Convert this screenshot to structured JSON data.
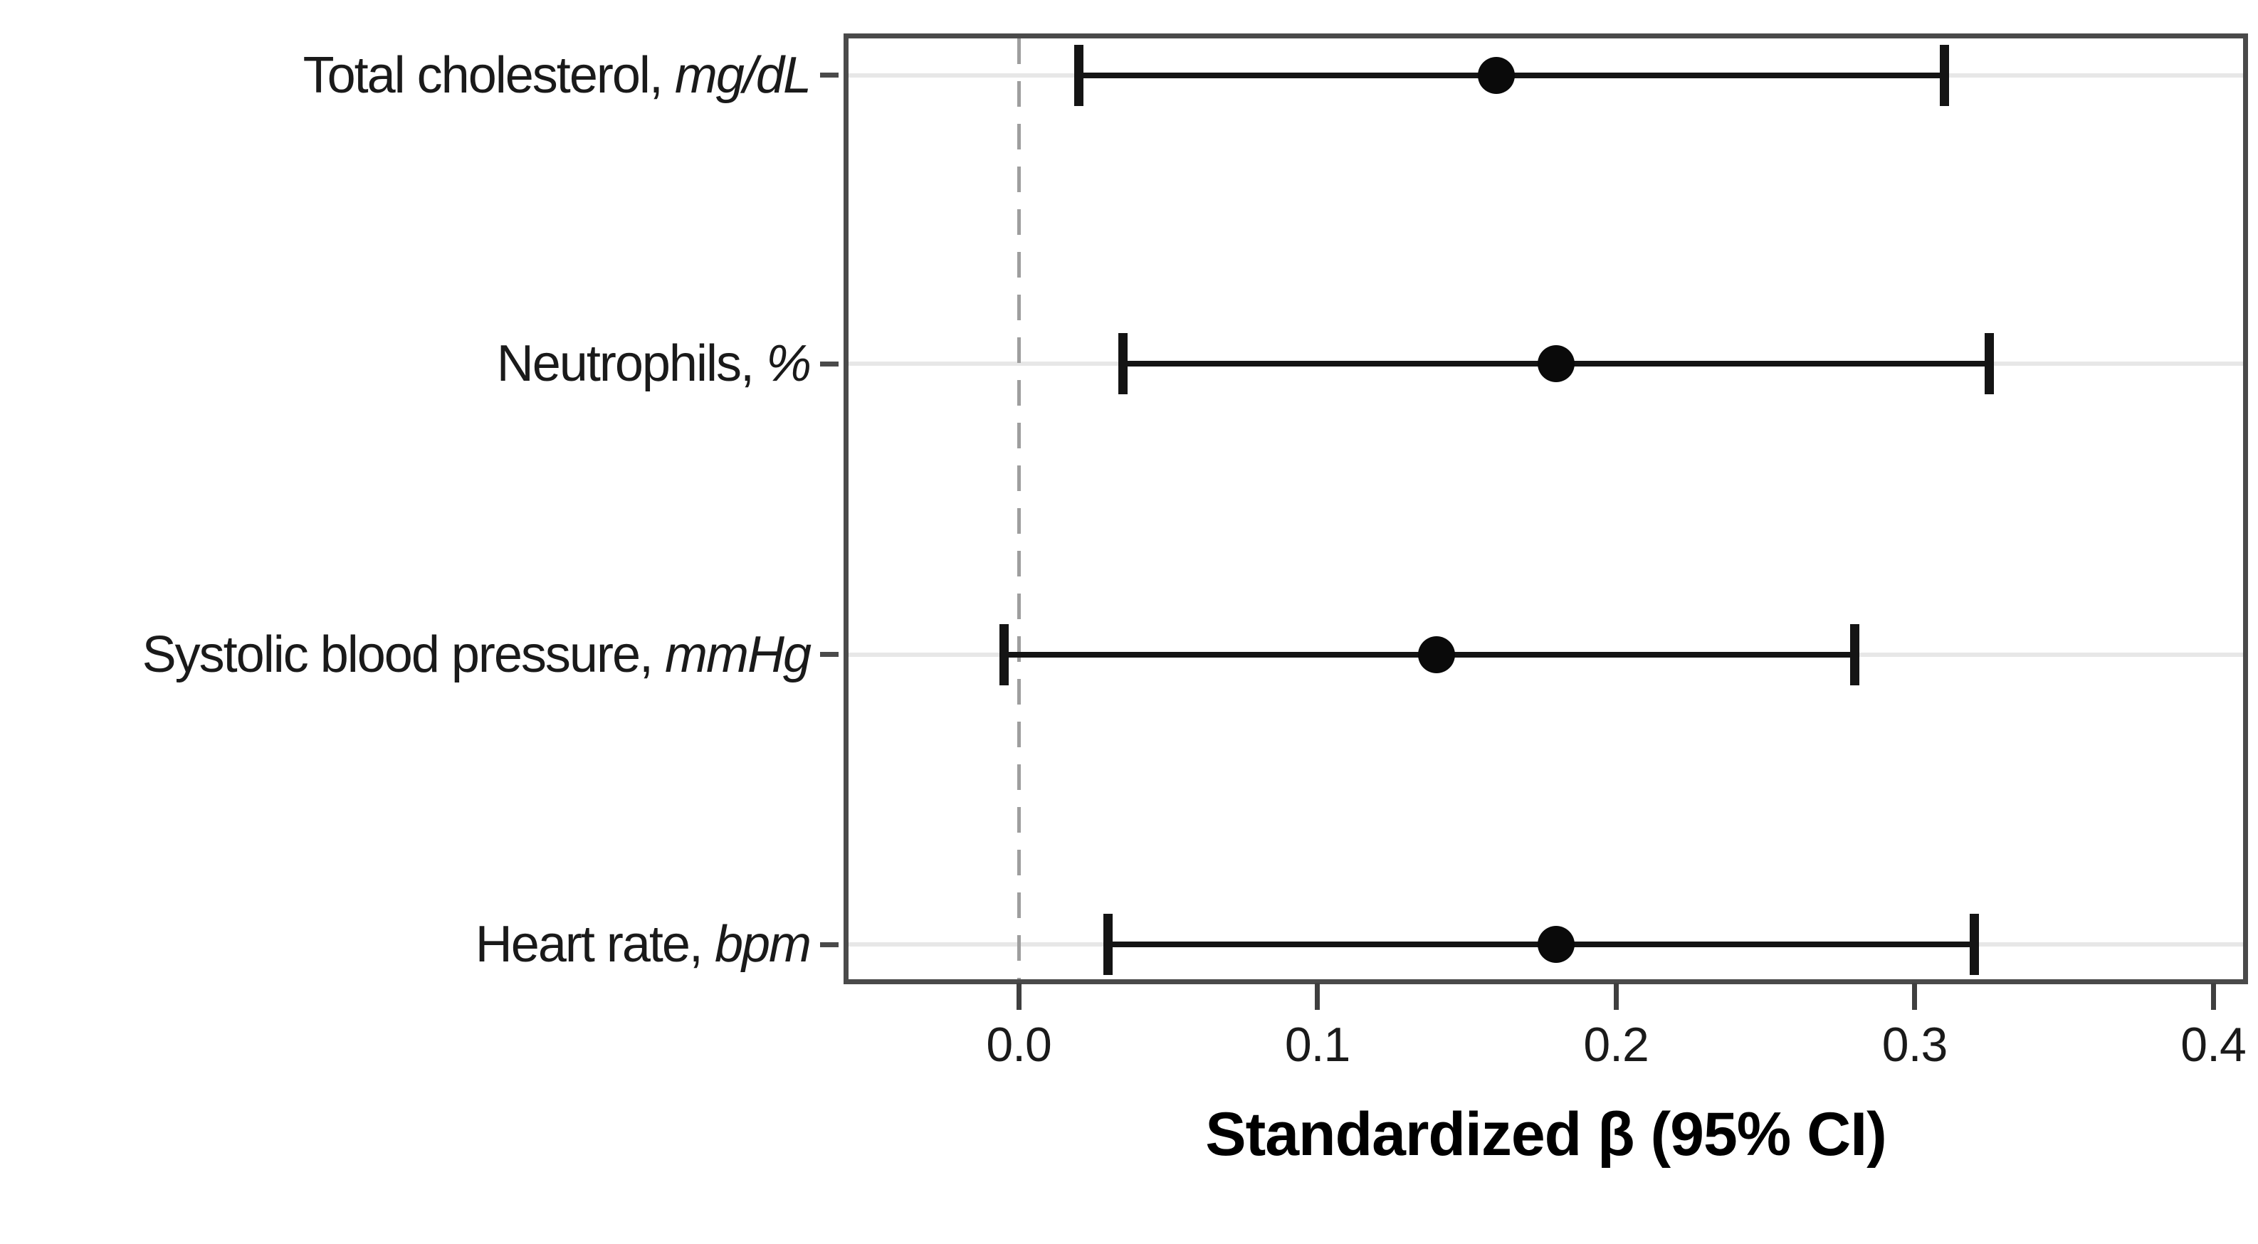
{
  "chart_data": {
    "type": "scatter",
    "subtype": "forest-plot (point estimates with 95% confidence interval error bars)",
    "title": "",
    "xlabel": "Standardized β (95% CI)",
    "ylabel": "",
    "xlim": [
      -0.057,
      0.41
    ],
    "x_ticks": [
      {
        "value": 0.0,
        "label": "0.0"
      },
      {
        "value": 0.1,
        "label": "0.1"
      },
      {
        "value": 0.2,
        "label": "0.2"
      },
      {
        "value": 0.3,
        "label": "0.3"
      },
      {
        "value": 0.4,
        "label": "0.4"
      }
    ],
    "reference_line": {
      "x": 0.0,
      "style": "dashed"
    },
    "grid": {
      "horizontal": true,
      "vertical": false
    },
    "legend": "none",
    "rows": [
      {
        "label": "Total cholesterol,",
        "unit": "mg/dL",
        "beta": 0.16,
        "ci_low": 0.02,
        "ci_high": 0.31
      },
      {
        "label": "Neutrophils,",
        "unit": "%",
        "beta": 0.18,
        "ci_low": 0.035,
        "ci_high": 0.325
      },
      {
        "label": "Systolic blood pressure,",
        "unit": "mmHg",
        "beta": 0.14,
        "ci_low": -0.005,
        "ci_high": 0.28
      },
      {
        "label": "Heart rate,",
        "unit": "bpm",
        "beta": 0.18,
        "ci_low": 0.03,
        "ci_high": 0.32
      }
    ]
  },
  "colors": {
    "marker": "#141414",
    "dot": "#0a0a0a",
    "plot_border": "#4a4a4a",
    "gridline": "#e7e7e7",
    "zero_line": "#9e9e9e",
    "text": "#1a1a1a",
    "background": "#ffffff"
  }
}
